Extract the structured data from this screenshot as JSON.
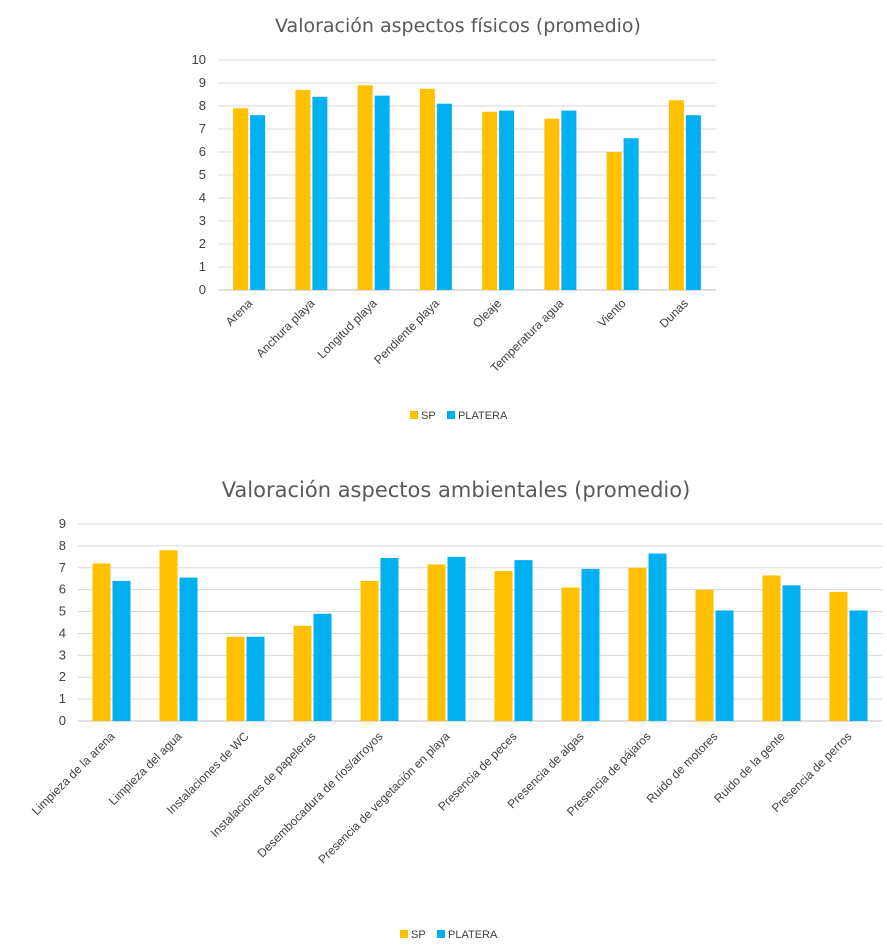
{
  "chart_data": [
    {
      "type": "bar",
      "title": "Valoración aspectos físicos (promedio)",
      "categories": [
        "Arena",
        "Anchura playa",
        "Longitud playa",
        "Pendiente playa",
        "Oleaje",
        "Temperatura agua",
        "Viento",
        "Dunas"
      ],
      "series": [
        {
          "name": "SP",
          "color": "#FFC000",
          "values": [
            7.9,
            8.7,
            8.9,
            8.75,
            7.75,
            7.45,
            6.0,
            8.25
          ]
        },
        {
          "name": "PLATERA",
          "color": "#00B0F0",
          "values": [
            7.6,
            8.4,
            8.45,
            8.1,
            7.8,
            7.8,
            6.6,
            7.6
          ]
        }
      ],
      "ylim": [
        0,
        10
      ],
      "yticks": [
        "0",
        "1",
        "2",
        "3",
        "4",
        "5",
        "6",
        "7",
        "8",
        "9",
        "10"
      ],
      "grid": true,
      "legend": "bottom"
    },
    {
      "type": "bar",
      "title": "Valoración aspectos ambientales (promedio)",
      "categories": [
        "Limpieza de la arena",
        "Limpieza del agua",
        "Instalaciones de WC",
        "Instalaciones de papeleras",
        "Desembocadura de ríos/arroyos",
        "Presencia de vegetación en playa",
        "Presencia de peces",
        "Presencia de algas",
        "Presencia de pájaros",
        "Ruido de motores",
        "Ruido de la gente",
        "Presencia de perros"
      ],
      "series": [
        {
          "name": "SP",
          "color": "#FFC000",
          "values": [
            7.2,
            7.8,
            3.85,
            4.35,
            6.4,
            7.15,
            6.85,
            6.1,
            7.0,
            6.0,
            6.65,
            5.9
          ]
        },
        {
          "name": "PLATERA",
          "color": "#00B0F0",
          "values": [
            6.4,
            6.55,
            3.85,
            4.9,
            7.45,
            7.5,
            7.35,
            6.95,
            7.65,
            5.05,
            6.2,
            5.05
          ]
        }
      ],
      "ylim": [
        0,
        9
      ],
      "yticks": [
        "0",
        "1",
        "2",
        "3",
        "4",
        "5",
        "6",
        "7",
        "8",
        "9"
      ],
      "grid": true,
      "legend": "bottom"
    }
  ]
}
